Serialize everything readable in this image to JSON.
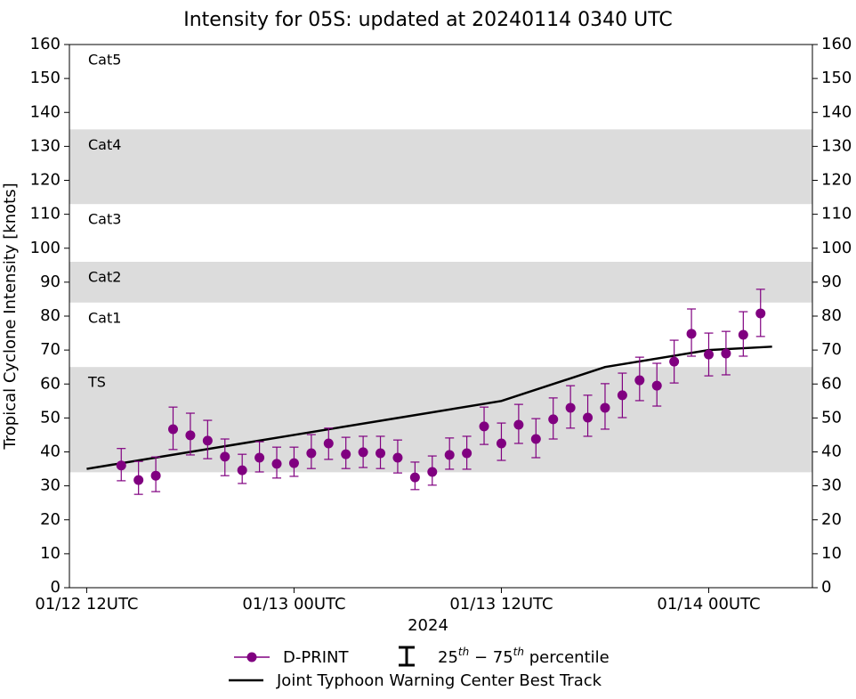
{
  "chart_data": {
    "type": "errorbar-line",
    "title": "Intensity for 05S: updated at 20240114 0340 UTC",
    "xlabel": "2024",
    "ylabel": "Tropical Cyclone Intensity [knots]",
    "xlim": [
      "2024-01-12T11:00",
      "2024-01-14T06:00"
    ],
    "xticks": [
      {
        "value": "2024-01-12T12:00",
        "label": "01/12 12UTC"
      },
      {
        "value": "2024-01-13T00:00",
        "label": "01/13 00UTC"
      },
      {
        "value": "2024-01-13T12:00",
        "label": "01/13 12UTC"
      },
      {
        "value": "2024-01-14T00:00",
        "label": "01/14 00UTC"
      }
    ],
    "ylim": [
      0,
      160
    ],
    "yticks": [
      0,
      10,
      20,
      30,
      40,
      50,
      60,
      70,
      80,
      90,
      100,
      110,
      120,
      130,
      140,
      150,
      160
    ],
    "band_color": "#dcdcdc",
    "categories": [
      {
        "label": "TS",
        "range": [
          34,
          65
        ],
        "shaded": true
      },
      {
        "label": "Cat1",
        "range": [
          65,
          84
        ],
        "shaded": false
      },
      {
        "label": "Cat2",
        "range": [
          84,
          96
        ],
        "shaded": true
      },
      {
        "label": "Cat3",
        "range": [
          96,
          113
        ],
        "shaded": false
      },
      {
        "label": "Cat4",
        "range": [
          113,
          135
        ],
        "shaded": true
      },
      {
        "label": "Cat5",
        "range": [
          135,
          160
        ],
        "shaded": false
      }
    ],
    "series": [
      {
        "name": "D-PRINT",
        "color": "#800080",
        "x": [
          "2024-01-12T14:00",
          "2024-01-12T15:00",
          "2024-01-12T16:00",
          "2024-01-12T17:00",
          "2024-01-12T18:00",
          "2024-01-12T19:00",
          "2024-01-12T20:00",
          "2024-01-12T21:00",
          "2024-01-12T22:00",
          "2024-01-12T23:00",
          "2024-01-13T00:00",
          "2024-01-13T01:00",
          "2024-01-13T02:00",
          "2024-01-13T03:00",
          "2024-01-13T04:00",
          "2024-01-13T05:00",
          "2024-01-13T06:00",
          "2024-01-13T07:00",
          "2024-01-13T08:00",
          "2024-01-13T09:00",
          "2024-01-13T10:00",
          "2024-01-13T11:00",
          "2024-01-13T12:00",
          "2024-01-13T13:00",
          "2024-01-13T14:00",
          "2024-01-13T15:00",
          "2024-01-13T16:00",
          "2024-01-13T17:00",
          "2024-01-13T18:00",
          "2024-01-13T19:00",
          "2024-01-13T20:00",
          "2024-01-13T21:00",
          "2024-01-13T22:00",
          "2024-01-13T23:00",
          "2024-01-14T00:00",
          "2024-01-14T01:00",
          "2024-01-14T02:00",
          "2024-01-14T03:00"
        ],
        "values": [
          36,
          31.7,
          33,
          46.7,
          44.9,
          43.3,
          38.6,
          34.6,
          38.3,
          36.5,
          36.7,
          39.6,
          42.5,
          39.3,
          39.9,
          39.6,
          38.3,
          32.5,
          34.1,
          39.1,
          39.6,
          47.5,
          42.5,
          48,
          43.8,
          49.6,
          53,
          50.1,
          53,
          56.7,
          61.1,
          59.5,
          66.6,
          74.8,
          68.7,
          69,
          74.5,
          80.8
        ],
        "p25": [
          31.5,
          27.5,
          28.3,
          40.7,
          39.1,
          38,
          33,
          30.7,
          34.1,
          32.3,
          32.8,
          35.1,
          37.8,
          35.1,
          35.4,
          35.1,
          33.8,
          28.9,
          30.2,
          34.9,
          34.9,
          42.2,
          37.5,
          42.5,
          38.3,
          43.8,
          47,
          44.6,
          46.7,
          50.1,
          55.1,
          53.5,
          60.3,
          68.2,
          62.4,
          62.7,
          68.2,
          74
        ],
        "p75": [
          41,
          37.2,
          38.5,
          53.2,
          51.4,
          49.3,
          43.8,
          39.3,
          43,
          41.4,
          41.4,
          45.1,
          47,
          44.3,
          44.6,
          44.6,
          43.5,
          37,
          38.8,
          44.1,
          44.6,
          53.2,
          48.5,
          54,
          49.8,
          55.9,
          59.5,
          56.7,
          60.1,
          63.2,
          67.9,
          66.1,
          72.9,
          82.1,
          75,
          75.5,
          81.3,
          87.9
        ]
      },
      {
        "name": "Joint Typhoon Warning Center Best Track",
        "color": "#000000",
        "x": [
          "2024-01-12T12:00",
          "2024-01-12T18:00",
          "2024-01-13T00:00",
          "2024-01-13T06:00",
          "2024-01-13T12:00",
          "2024-01-13T18:00",
          "2024-01-14T00:00",
          "2024-01-14T03:40"
        ],
        "values": [
          35,
          40,
          45,
          50,
          55,
          65,
          70,
          71
        ]
      }
    ],
    "percentile_legend": [
      {
        "text": "25"
      },
      {
        "text": "th",
        "sup": true
      },
      {
        "text": " − 75"
      },
      {
        "text": "th",
        "sup": true
      },
      {
        "text": " percentile"
      }
    ]
  }
}
